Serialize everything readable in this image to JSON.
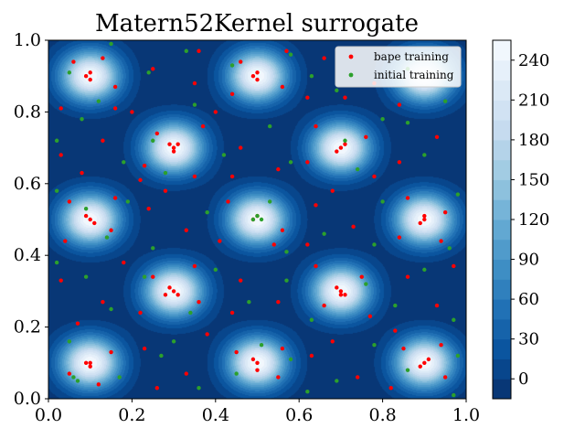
{
  "chart_data": {
    "type": "contour",
    "title": "Matern52Kernel surrogate",
    "xlabel": "",
    "ylabel": "",
    "xlim": [
      0.0,
      1.0
    ],
    "ylim": [
      0.0,
      1.0
    ],
    "x_ticks": [
      "0.0",
      "0.2",
      "0.4",
      "0.6",
      "0.8",
      "1.0"
    ],
    "y_ticks": [
      "0.0",
      "0.2",
      "0.4",
      "0.6",
      "0.8",
      "1.0"
    ],
    "colormap": "Blues_r",
    "colorbar": {
      "min": -15,
      "max": 255,
      "ticks": [
        "0",
        "30",
        "60",
        "90",
        "120",
        "150",
        "180",
        "210",
        "240"
      ]
    },
    "peaks": [
      {
        "x": 0.1,
        "y": 0.9
      },
      {
        "x": 0.5,
        "y": 0.9
      },
      {
        "x": 0.9,
        "y": 0.9
      },
      {
        "x": 0.3,
        "y": 0.7
      },
      {
        "x": 0.7,
        "y": 0.7
      },
      {
        "x": 0.1,
        "y": 0.5
      },
      {
        "x": 0.5,
        "y": 0.5
      },
      {
        "x": 0.9,
        "y": 0.5
      },
      {
        "x": 0.3,
        "y": 0.3
      },
      {
        "x": 0.7,
        "y": 0.3
      },
      {
        "x": 0.1,
        "y": 0.1
      },
      {
        "x": 0.5,
        "y": 0.1
      },
      {
        "x": 0.9,
        "y": 0.1
      }
    ],
    "legend": {
      "placement": "upper right",
      "entries": [
        {
          "label": "bape training",
          "color": "#ff0000"
        },
        {
          "label": "initial training",
          "color": "#2ca02c"
        }
      ]
    },
    "series": [
      {
        "name": "bape training",
        "color": "#ff0000",
        "points": [
          [
            0.1,
            0.91
          ],
          [
            0.09,
            0.9
          ],
          [
            0.1,
            0.89
          ],
          [
            0.06,
            0.94
          ],
          [
            0.16,
            0.87
          ],
          [
            0.13,
            0.95
          ],
          [
            0.03,
            0.81
          ],
          [
            0.16,
            0.81
          ],
          [
            0.5,
            0.91
          ],
          [
            0.49,
            0.9
          ],
          [
            0.5,
            0.89
          ],
          [
            0.46,
            0.94
          ],
          [
            0.56,
            0.87
          ],
          [
            0.44,
            0.85
          ],
          [
            0.4,
            0.8
          ],
          [
            0.3,
            0.7
          ],
          [
            0.31,
            0.71
          ],
          [
            0.29,
            0.71
          ],
          [
            0.3,
            0.69
          ],
          [
            0.26,
            0.74
          ],
          [
            0.23,
            0.65
          ],
          [
            0.35,
            0.62
          ],
          [
            0.22,
            0.61
          ],
          [
            0.37,
            0.76
          ],
          [
            0.7,
            0.7
          ],
          [
            0.71,
            0.71
          ],
          [
            0.69,
            0.69
          ],
          [
            0.76,
            0.73
          ],
          [
            0.62,
            0.66
          ],
          [
            0.64,
            0.76
          ],
          [
            0.78,
            0.62
          ],
          [
            0.1,
            0.5
          ],
          [
            0.09,
            0.51
          ],
          [
            0.11,
            0.49
          ],
          [
            0.15,
            0.47
          ],
          [
            0.05,
            0.55
          ],
          [
            0.04,
            0.44
          ],
          [
            0.16,
            0.56
          ],
          [
            0.5,
            0.51
          ],
          [
            0.49,
            0.5
          ],
          [
            0.56,
            0.47
          ],
          [
            0.43,
            0.55
          ],
          [
            0.54,
            0.43
          ],
          [
            0.41,
            0.44
          ],
          [
            0.9,
            0.51
          ],
          [
            0.9,
            0.5
          ],
          [
            0.89,
            0.49
          ],
          [
            0.95,
            0.52
          ],
          [
            0.84,
            0.45
          ],
          [
            0.94,
            0.44
          ],
          [
            0.86,
            0.56
          ],
          [
            0.3,
            0.3
          ],
          [
            0.31,
            0.29
          ],
          [
            0.29,
            0.31
          ],
          [
            0.28,
            0.29
          ],
          [
            0.25,
            0.34
          ],
          [
            0.36,
            0.27
          ],
          [
            0.22,
            0.24
          ],
          [
            0.35,
            0.37
          ],
          [
            0.7,
            0.3
          ],
          [
            0.71,
            0.29
          ],
          [
            0.69,
            0.31
          ],
          [
            0.7,
            0.29
          ],
          [
            0.66,
            0.26
          ],
          [
            0.75,
            0.34
          ],
          [
            0.64,
            0.37
          ],
          [
            0.77,
            0.23
          ],
          [
            0.1,
            0.1
          ],
          [
            0.09,
            0.1
          ],
          [
            0.1,
            0.09
          ],
          [
            0.05,
            0.07
          ],
          [
            0.15,
            0.13
          ],
          [
            0.12,
            0.04
          ],
          [
            0.5,
            0.1
          ],
          [
            0.49,
            0.11
          ],
          [
            0.5,
            0.08
          ],
          [
            0.45,
            0.13
          ],
          [
            0.55,
            0.06
          ],
          [
            0.56,
            0.14
          ],
          [
            0.9,
            0.1
          ],
          [
            0.91,
            0.11
          ],
          [
            0.89,
            0.09
          ],
          [
            0.85,
            0.14
          ],
          [
            0.95,
            0.06
          ],
          [
            0.94,
            0.15
          ],
          [
            0.2,
            0.8
          ],
          [
            0.25,
            0.92
          ],
          [
            0.35,
            0.88
          ],
          [
            0.62,
            0.84
          ],
          [
            0.66,
            0.95
          ],
          [
            0.78,
            0.88
          ],
          [
            0.84,
            0.82
          ],
          [
            0.03,
            0.68
          ],
          [
            0.08,
            0.63
          ],
          [
            0.13,
            0.72
          ],
          [
            0.46,
            0.7
          ],
          [
            0.55,
            0.64
          ],
          [
            0.84,
            0.66
          ],
          [
            0.93,
            0.73
          ],
          [
            0.24,
            0.53
          ],
          [
            0.33,
            0.47
          ],
          [
            0.28,
            0.58
          ],
          [
            0.64,
            0.54
          ],
          [
            0.73,
            0.48
          ],
          [
            0.68,
            0.58
          ],
          [
            0.03,
            0.33
          ],
          [
            0.13,
            0.27
          ],
          [
            0.07,
            0.21
          ],
          [
            0.46,
            0.33
          ],
          [
            0.55,
            0.27
          ],
          [
            0.44,
            0.24
          ],
          [
            0.86,
            0.34
          ],
          [
            0.93,
            0.26
          ],
          [
            0.97,
            0.37
          ],
          [
            0.23,
            0.14
          ],
          [
            0.33,
            0.07
          ],
          [
            0.26,
            0.03
          ],
          [
            0.63,
            0.12
          ],
          [
            0.74,
            0.06
          ],
          [
            0.68,
            0.16
          ],
          [
            0.82,
            0.03
          ],
          [
            0.36,
            0.97
          ],
          [
            0.57,
            0.97
          ],
          [
            0.71,
            0.84
          ],
          [
            0.44,
            0.62
          ],
          [
            0.62,
            0.43
          ],
          [
            0.18,
            0.38
          ],
          [
            0.83,
            0.19
          ],
          [
            0.38,
            0.18
          ]
        ]
      },
      {
        "name": "initial training",
        "color": "#2ca02c",
        "points": [
          [
            0.05,
            0.91
          ],
          [
            0.12,
            0.83
          ],
          [
            0.08,
            0.78
          ],
          [
            0.02,
            0.72
          ],
          [
            0.24,
            0.91
          ],
          [
            0.44,
            0.93
          ],
          [
            0.35,
            0.82
          ],
          [
            0.58,
            0.96
          ],
          [
            0.63,
            0.9
          ],
          [
            0.86,
            0.92
          ],
          [
            0.95,
            0.83
          ],
          [
            0.8,
            0.78
          ],
          [
            0.25,
            0.72
          ],
          [
            0.18,
            0.66
          ],
          [
            0.28,
            0.63
          ],
          [
            0.53,
            0.76
          ],
          [
            0.58,
            0.66
          ],
          [
            0.71,
            0.72
          ],
          [
            0.74,
            0.64
          ],
          [
            0.9,
            0.68
          ],
          [
            0.02,
            0.58
          ],
          [
            0.09,
            0.53
          ],
          [
            0.14,
            0.45
          ],
          [
            0.25,
            0.42
          ],
          [
            0.38,
            0.52
          ],
          [
            0.5,
            0.51
          ],
          [
            0.49,
            0.5
          ],
          [
            0.51,
            0.5
          ],
          [
            0.53,
            0.55
          ],
          [
            0.57,
            0.41
          ],
          [
            0.66,
            0.46
          ],
          [
            0.78,
            0.43
          ],
          [
            0.8,
            0.55
          ],
          [
            0.98,
            0.57
          ],
          [
            0.02,
            0.38
          ],
          [
            0.09,
            0.34
          ],
          [
            0.15,
            0.25
          ],
          [
            0.23,
            0.34
          ],
          [
            0.34,
            0.24
          ],
          [
            0.4,
            0.36
          ],
          [
            0.48,
            0.27
          ],
          [
            0.57,
            0.33
          ],
          [
            0.63,
            0.22
          ],
          [
            0.76,
            0.32
          ],
          [
            0.83,
            0.26
          ],
          [
            0.9,
            0.36
          ],
          [
            0.97,
            0.22
          ],
          [
            0.05,
            0.16
          ],
          [
            0.06,
            0.06
          ],
          [
            0.07,
            0.05
          ],
          [
            0.17,
            0.06
          ],
          [
            0.27,
            0.12
          ],
          [
            0.36,
            0.03
          ],
          [
            0.45,
            0.07
          ],
          [
            0.51,
            0.15
          ],
          [
            0.58,
            0.11
          ],
          [
            0.69,
            0.05
          ],
          [
            0.78,
            0.15
          ],
          [
            0.86,
            0.08
          ],
          [
            0.98,
            0.12
          ],
          [
            0.33,
            0.97
          ],
          [
            0.69,
            0.86
          ],
          [
            0.86,
            0.77
          ],
          [
            0.42,
            0.68
          ],
          [
            0.19,
            0.55
          ],
          [
            0.96,
            0.42
          ],
          [
            0.3,
            0.16
          ],
          [
            0.62,
            0.02
          ],
          [
            0.97,
            0.01
          ],
          [
            0.15,
            0.99
          ]
        ]
      }
    ]
  }
}
